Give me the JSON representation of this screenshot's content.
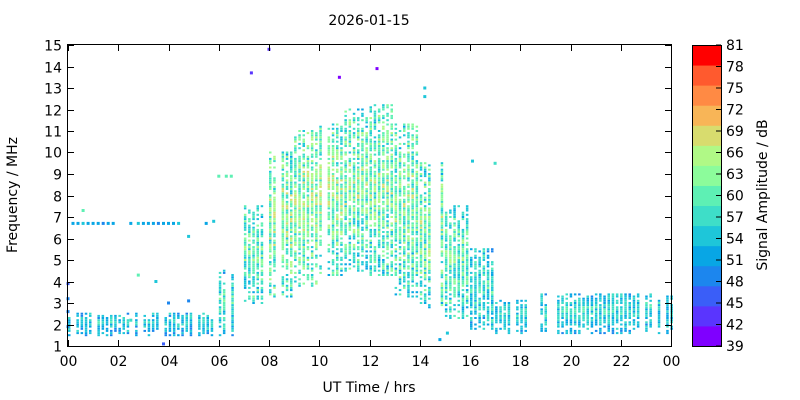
{
  "chart_data": {
    "type": "heatmap",
    "title": "2026-01-15",
    "xlabel": "UT Time / hrs",
    "ylabel": "Frequency / MHz",
    "colorbar_label": "Signal Amplitude / dB",
    "xlim": [
      0,
      24
    ],
    "ylim": [
      1,
      15
    ],
    "x_ticks": [
      "00",
      "02",
      "04",
      "06",
      "08",
      "10",
      "12",
      "14",
      "16",
      "18",
      "20",
      "22",
      "00"
    ],
    "y_ticks": [
      "1",
      "2",
      "3",
      "4",
      "5",
      "6",
      "7",
      "8",
      "9",
      "10",
      "11",
      "12",
      "13",
      "14",
      "15"
    ],
    "colorbar_ticks": [
      "39",
      "42",
      "45",
      "48",
      "51",
      "54",
      "57",
      "60",
      "63",
      "66",
      "69",
      "72",
      "75",
      "78",
      "81"
    ],
    "colorbar_colors": [
      "#7f00ff",
      "#5a35fe",
      "#3a5ef8",
      "#1c86ee",
      "#08a6e5",
      "#1ec6d9",
      "#3edec8",
      "#5ef0b4",
      "#8cfc9b",
      "#b0f986",
      "#d8dc6e",
      "#f8b557",
      "#ff8a44",
      "#ff5a2e",
      "#ff0000"
    ],
    "zlim": [
      39,
      81
    ],
    "grid": false,
    "grid_step": {
      "hours": 0.167,
      "mhz": 0.1
    },
    "samples": [
      {
        "t": 0.0,
        "f": 1.9,
        "db": 48
      },
      {
        "t": 0.0,
        "f": 2.6,
        "db": 49
      },
      {
        "t": 0.0,
        "f": 3.2,
        "db": 48
      },
      {
        "t": 0.0,
        "f": 3.9,
        "db": 47
      },
      {
        "t": 0.2,
        "f": 6.7,
        "db": 52
      },
      {
        "t": 0.4,
        "f": 6.7,
        "db": 51
      },
      {
        "t": 0.6,
        "f": 6.7,
        "db": 53
      },
      {
        "t": 0.8,
        "f": 6.7,
        "db": 52
      },
      {
        "t": 1.0,
        "f": 6.7,
        "db": 51
      },
      {
        "t": 1.2,
        "f": 6.7,
        "db": 52
      },
      {
        "t": 1.4,
        "f": 6.7,
        "db": 50
      },
      {
        "t": 1.6,
        "f": 6.7,
        "db": 52
      },
      {
        "t": 1.8,
        "f": 6.7,
        "db": 51
      },
      {
        "t": 2.5,
        "f": 6.7,
        "db": 52
      },
      {
        "t": 2.8,
        "f": 6.7,
        "db": 53
      },
      {
        "t": 3.0,
        "f": 6.7,
        "db": 52
      },
      {
        "t": 3.2,
        "f": 6.7,
        "db": 51
      },
      {
        "t": 3.4,
        "f": 6.7,
        "db": 52
      },
      {
        "t": 3.6,
        "f": 6.7,
        "db": 50
      },
      {
        "t": 3.8,
        "f": 6.7,
        "db": 52
      },
      {
        "t": 4.0,
        "f": 6.7,
        "db": 51
      },
      {
        "t": 4.2,
        "f": 6.7,
        "db": 52
      },
      {
        "t": 4.4,
        "f": 6.7,
        "db": 53
      },
      {
        "t": 0.6,
        "f": 7.3,
        "db": 60
      },
      {
        "t": 2.5,
        "f": 2.2,
        "db": 57
      },
      {
        "t": 2.8,
        "f": 4.3,
        "db": 60
      },
      {
        "t": 3.5,
        "f": 4.0,
        "db": 54
      },
      {
        "t": 4.8,
        "f": 6.1,
        "db": 55
      },
      {
        "t": 5.5,
        "f": 6.7,
        "db": 52
      },
      {
        "t": 5.8,
        "f": 6.8,
        "db": 53
      },
      {
        "t": 6.0,
        "f": 8.9,
        "db": 60
      },
      {
        "t": 6.3,
        "f": 8.9,
        "db": 60
      },
      {
        "t": 6.5,
        "f": 8.9,
        "db": 59
      },
      {
        "t": 3.8,
        "f": 1.1,
        "db": 45
      },
      {
        "t": 7.3,
        "f": 13.7,
        "db": 42
      },
      {
        "t": 8.0,
        "f": 14.8,
        "db": 42
      },
      {
        "t": 10.8,
        "f": 13.5,
        "db": 41
      },
      {
        "t": 12.3,
        "f": 13.9,
        "db": 40
      },
      {
        "t": 14.2,
        "f": 13.0,
        "db": 55
      },
      {
        "t": 14.2,
        "f": 12.6,
        "db": 55
      },
      {
        "t": 17.0,
        "f": 9.5,
        "db": 56
      },
      {
        "t": 16.1,
        "f": 9.6,
        "db": 54
      },
      {
        "t": 15.1,
        "f": 1.6,
        "db": 55
      },
      {
        "t": 14.8,
        "f": 1.3,
        "db": 52
      },
      {
        "t": 4.0,
        "f": 3.0,
        "db": 49
      },
      {
        "t": 4.8,
        "f": 3.1,
        "db": 48
      }
    ],
    "bands": [
      {
        "t0": 0.0,
        "t1": 6.0,
        "f0": 1.5,
        "f1": 2.6,
        "db": 51,
        "spread": 5
      },
      {
        "t0": 6.0,
        "t1": 7.0,
        "f0": 1.5,
        "f1": 4.5,
        "db": 53,
        "spread": 6
      },
      {
        "t0": 7.0,
        "t1": 8.0,
        "f0": 3.0,
        "f1": 7.5,
        "db": 55,
        "spread": 7
      },
      {
        "t0": 8.0,
        "t1": 9.0,
        "f0": 3.3,
        "f1": 10.0,
        "db": 57,
        "spread": 8
      },
      {
        "t0": 9.0,
        "t1": 10.0,
        "f0": 3.8,
        "f1": 11.0,
        "db": 57,
        "spread": 8
      },
      {
        "t0": 10.0,
        "t1": 11.0,
        "f0": 4.3,
        "f1": 11.3,
        "db": 57,
        "spread": 8
      },
      {
        "t0": 11.0,
        "t1": 12.0,
        "f0": 4.5,
        "f1": 12.0,
        "db": 56,
        "spread": 8
      },
      {
        "t0": 12.0,
        "t1": 13.0,
        "f0": 4.3,
        "f1": 12.2,
        "db": 56,
        "spread": 8
      },
      {
        "t0": 13.0,
        "t1": 14.0,
        "f0": 3.3,
        "f1": 11.3,
        "db": 56,
        "spread": 8
      },
      {
        "t0": 14.0,
        "t1": 15.0,
        "f0": 2.8,
        "f1": 9.5,
        "db": 56,
        "spread": 8
      },
      {
        "t0": 15.0,
        "t1": 16.0,
        "f0": 2.3,
        "f1": 7.5,
        "db": 55,
        "spread": 7
      },
      {
        "t0": 16.0,
        "t1": 17.0,
        "f0": 1.8,
        "f1": 5.5,
        "db": 53,
        "spread": 6
      },
      {
        "t0": 17.0,
        "t1": 18.3,
        "f0": 1.6,
        "f1": 3.2,
        "db": 52,
        "spread": 5
      },
      {
        "t0": 18.8,
        "t1": 24.0,
        "f0": 1.6,
        "f1": 3.5,
        "db": 52,
        "spread": 5
      }
    ]
  }
}
